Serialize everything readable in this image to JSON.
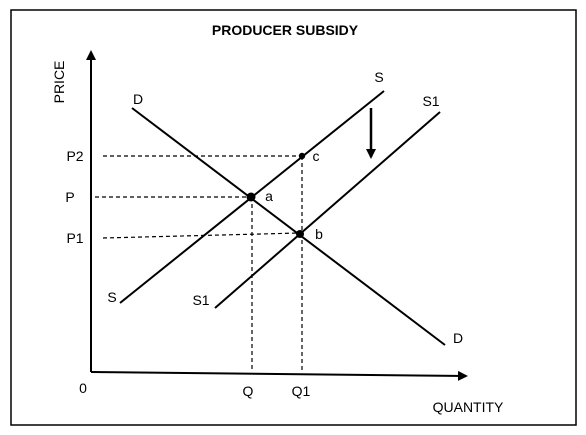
{
  "title": "PRODUCER SUBSIDY",
  "axes": {
    "y_label": "PRICE",
    "x_label": "QUANTITY",
    "origin": "0"
  },
  "price_labels": {
    "p2": "P2",
    "p": "P",
    "p1": "P1"
  },
  "quantity_labels": {
    "q": "Q",
    "q1": "Q1"
  },
  "curves": {
    "demand": {
      "top": "D",
      "bottom": "D"
    },
    "supply": {
      "top": "S",
      "bottom": "S"
    },
    "supply_shifted": {
      "top": "S1",
      "bottom": "S1"
    }
  },
  "points": {
    "a": "a",
    "b": "b",
    "c": "c"
  },
  "colors": {
    "line": "#000000",
    "frame": "#000000",
    "background": "#ffffff"
  }
}
